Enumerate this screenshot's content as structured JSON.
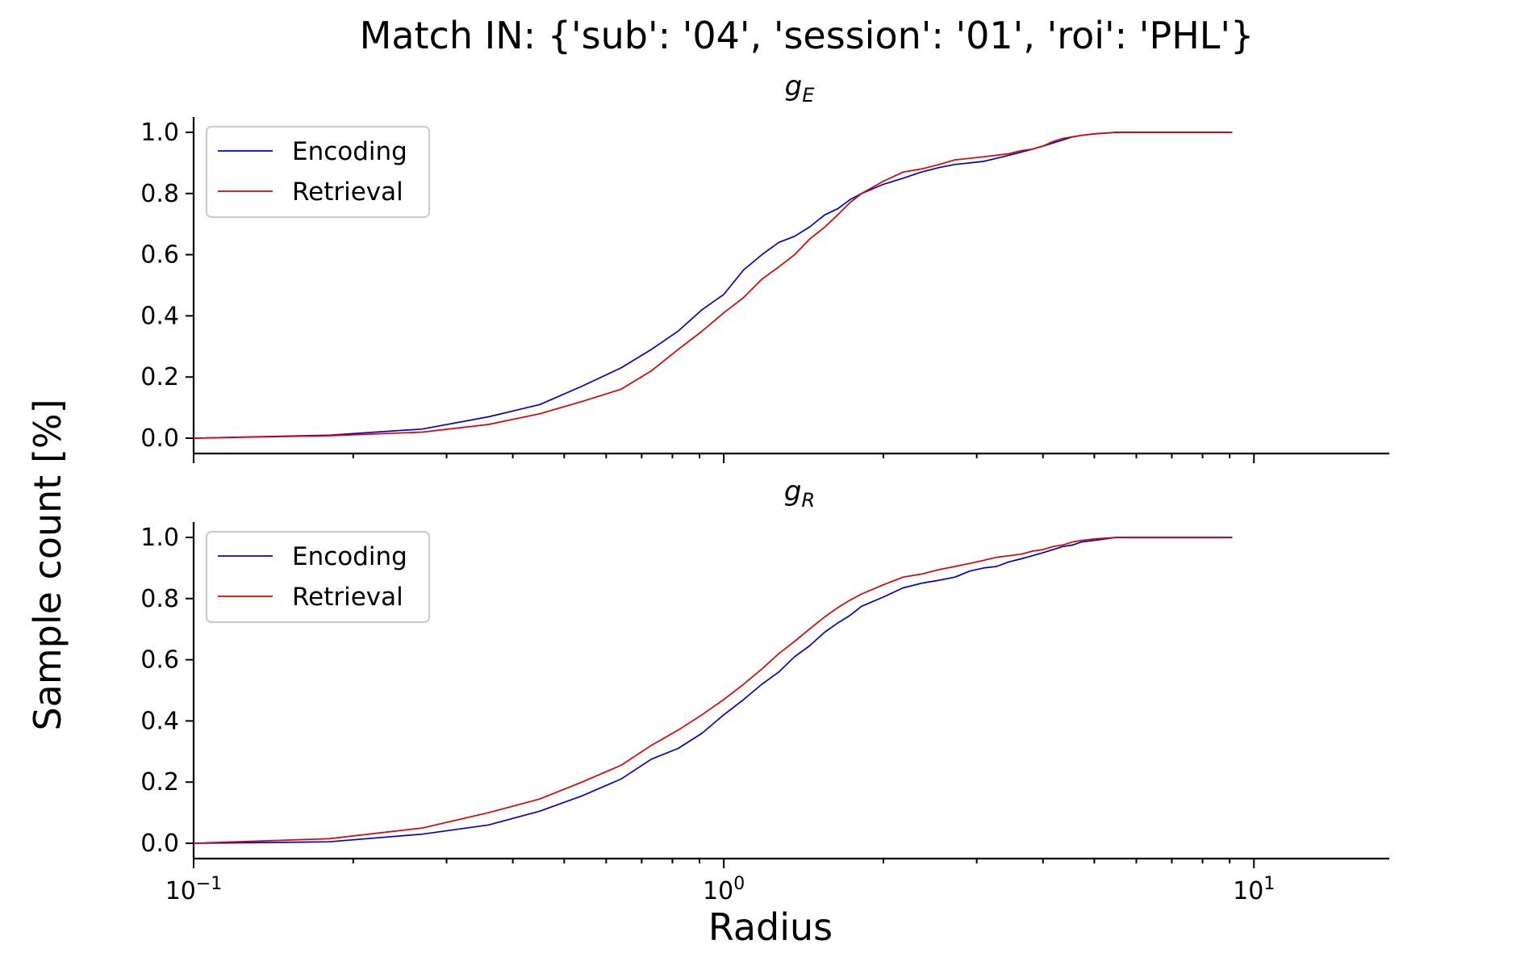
{
  "suptitle": "Match IN: {'sub': '04', 'session': '01', 'roi': 'PHL'}",
  "ylabel": "Sample count [%]",
  "xlabel": "Radius",
  "colors": {
    "encoding": "#0000cc",
    "retrieval": "#dd0000"
  },
  "chart_data": [
    {
      "type": "line",
      "title_main": "g",
      "title_sub": "E",
      "xscale": "log",
      "xlim": [
        0.1,
        18
      ],
      "ylim": [
        -0.05,
        1.05
      ],
      "yticks": [
        "0.0",
        "0.2",
        "0.4",
        "0.6",
        "0.8",
        "1.0"
      ],
      "xtick_base": "10",
      "xtick_exps": [
        "−1",
        "0",
        "1"
      ],
      "legend": {
        "placement": "upper-left",
        "entries": [
          "Encoding",
          "Retrieval"
        ]
      },
      "series": [
        {
          "name": "Encoding",
          "x": [
            0.1,
            0.18,
            0.27,
            0.36,
            0.45,
            0.54,
            0.64,
            0.73,
            0.82,
            0.91,
            1.0,
            1.09,
            1.18,
            1.27,
            1.36,
            1.45,
            1.55,
            1.64,
            1.73,
            1.82,
            2.0,
            2.18,
            2.36,
            2.55,
            2.73,
            2.91,
            3.09,
            3.27,
            3.45,
            3.64,
            3.82,
            4.0,
            4.18,
            4.36,
            4.55,
            4.73,
            5.0,
            5.5,
            6.5,
            9.1
          ],
          "y": [
            0.0,
            0.01,
            0.03,
            0.07,
            0.11,
            0.17,
            0.23,
            0.29,
            0.35,
            0.42,
            0.47,
            0.55,
            0.6,
            0.64,
            0.66,
            0.69,
            0.73,
            0.75,
            0.78,
            0.8,
            0.83,
            0.85,
            0.87,
            0.885,
            0.895,
            0.9,
            0.905,
            0.915,
            0.925,
            0.935,
            0.945,
            0.955,
            0.965,
            0.975,
            0.985,
            0.99,
            0.995,
            1.0,
            1.0,
            1.0
          ]
        },
        {
          "name": "Retrieval",
          "x": [
            0.1,
            0.18,
            0.27,
            0.36,
            0.45,
            0.54,
            0.64,
            0.73,
            0.82,
            0.91,
            1.0,
            1.09,
            1.18,
            1.27,
            1.36,
            1.45,
            1.55,
            1.64,
            1.73,
            1.82,
            2.0,
            2.18,
            2.36,
            2.55,
            2.73,
            2.91,
            3.09,
            3.27,
            3.45,
            3.64,
            3.82,
            4.0,
            4.18,
            4.36,
            4.55,
            4.73,
            5.0,
            5.5,
            6.5,
            9.1
          ],
          "y": [
            0.0,
            0.008,
            0.02,
            0.045,
            0.08,
            0.12,
            0.16,
            0.22,
            0.29,
            0.35,
            0.41,
            0.46,
            0.52,
            0.56,
            0.6,
            0.65,
            0.69,
            0.73,
            0.77,
            0.8,
            0.84,
            0.87,
            0.88,
            0.895,
            0.91,
            0.915,
            0.92,
            0.925,
            0.93,
            0.94,
            0.945,
            0.955,
            0.97,
            0.98,
            0.985,
            0.99,
            0.995,
            1.0,
            1.0,
            1.0
          ]
        }
      ]
    },
    {
      "type": "line",
      "title_main": "g",
      "title_sub": "R",
      "xscale": "log",
      "xlim": [
        0.1,
        18
      ],
      "ylim": [
        -0.05,
        1.05
      ],
      "yticks": [
        "0.0",
        "0.2",
        "0.4",
        "0.6",
        "0.8",
        "1.0"
      ],
      "xtick_base": "10",
      "xtick_exps": [
        "−1",
        "0",
        "1"
      ],
      "legend": {
        "placement": "upper-left",
        "entries": [
          "Encoding",
          "Retrieval"
        ]
      },
      "series": [
        {
          "name": "Encoding",
          "x": [
            0.1,
            0.18,
            0.27,
            0.36,
            0.45,
            0.54,
            0.64,
            0.73,
            0.82,
            0.91,
            1.0,
            1.09,
            1.18,
            1.27,
            1.36,
            1.45,
            1.55,
            1.64,
            1.73,
            1.82,
            2.0,
            2.18,
            2.36,
            2.55,
            2.73,
            2.91,
            3.09,
            3.27,
            3.45,
            3.64,
            3.82,
            4.0,
            4.18,
            4.36,
            4.55,
            4.73,
            5.0,
            5.5,
            6.5,
            9.1
          ],
          "y": [
            0.0,
            0.005,
            0.03,
            0.06,
            0.105,
            0.155,
            0.21,
            0.275,
            0.31,
            0.36,
            0.42,
            0.47,
            0.52,
            0.56,
            0.61,
            0.645,
            0.69,
            0.72,
            0.745,
            0.775,
            0.805,
            0.835,
            0.85,
            0.86,
            0.87,
            0.89,
            0.9,
            0.905,
            0.92,
            0.93,
            0.94,
            0.95,
            0.96,
            0.97,
            0.975,
            0.985,
            0.99,
            1.0,
            1.0,
            1.0
          ]
        },
        {
          "name": "Retrieval",
          "x": [
            0.1,
            0.18,
            0.27,
            0.36,
            0.45,
            0.54,
            0.64,
            0.73,
            0.82,
            0.91,
            1.0,
            1.09,
            1.18,
            1.27,
            1.36,
            1.45,
            1.55,
            1.64,
            1.73,
            1.82,
            2.0,
            2.18,
            2.36,
            2.55,
            2.73,
            2.91,
            3.09,
            3.27,
            3.45,
            3.64,
            3.82,
            4.0,
            4.18,
            4.36,
            4.55,
            4.73,
            5.0,
            5.5,
            6.5,
            9.1
          ],
          "y": [
            0.0,
            0.015,
            0.05,
            0.1,
            0.145,
            0.2,
            0.255,
            0.32,
            0.37,
            0.42,
            0.47,
            0.52,
            0.57,
            0.62,
            0.66,
            0.7,
            0.74,
            0.77,
            0.795,
            0.815,
            0.845,
            0.87,
            0.88,
            0.895,
            0.905,
            0.915,
            0.925,
            0.935,
            0.94,
            0.945,
            0.955,
            0.96,
            0.97,
            0.975,
            0.985,
            0.99,
            0.995,
            1.0,
            1.0,
            1.0
          ]
        }
      ]
    }
  ]
}
